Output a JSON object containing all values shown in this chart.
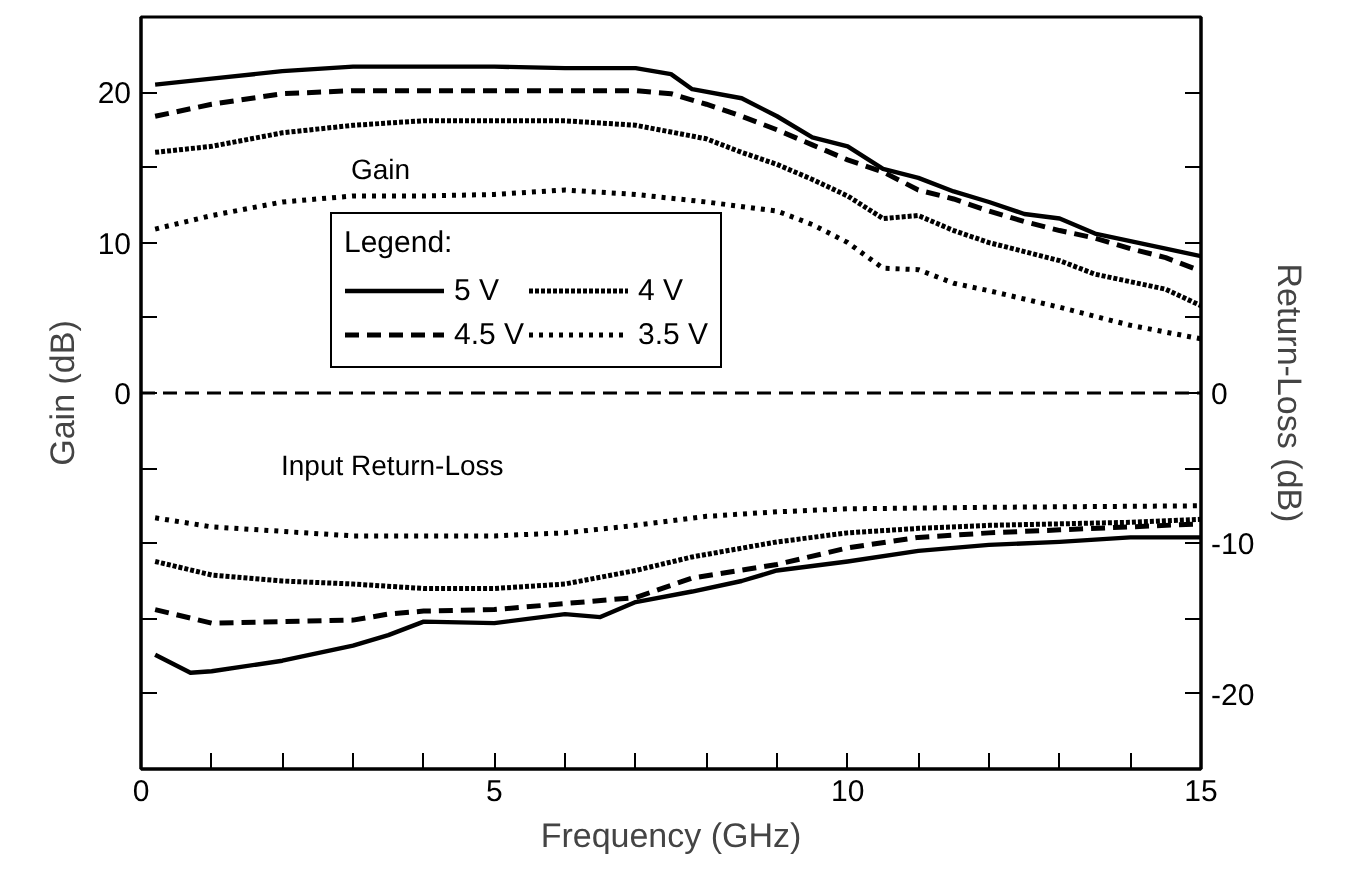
{
  "chart_data": {
    "type": "line",
    "xlabel": "Frequency (GHz)",
    "ylabel": "Gain (dB)",
    "y2label": "Return-Loss (dB)",
    "legend_title": "Legend:",
    "xlim": [
      0,
      15
    ],
    "ylim": [
      -25,
      25
    ],
    "y2lim": [
      -25,
      25
    ],
    "xticks": [
      0,
      {
        "value": 1,
        "label": null
      },
      {
        "value": 2,
        "label": null
      },
      {
        "value": 3,
        "label": null
      },
      {
        "value": 4,
        "label": null
      },
      5,
      {
        "value": 6,
        "label": null
      },
      {
        "value": 7,
        "label": null
      },
      {
        "value": 8,
        "label": null
      },
      {
        "value": 9,
        "label": null
      },
      10,
      {
        "value": 11,
        "label": null
      },
      {
        "value": 12,
        "label": null
      },
      {
        "value": 13,
        "label": null
      },
      {
        "value": 14,
        "label": null
      },
      15
    ],
    "yticks": [
      {
        "value": -20,
        "label": null
      },
      {
        "value": -15,
        "label": null
      },
      {
        "value": -10,
        "label": null
      },
      {
        "value": -5,
        "label": null
      },
      0,
      {
        "value": 5,
        "label": null
      },
      10,
      {
        "value": 15,
        "label": null
      },
      20
    ],
    "y2ticks": [
      -20,
      {
        "value": -15,
        "label": null
      },
      -10,
      {
        "value": -5,
        "label": null
      },
      0,
      {
        "value": 5,
        "label": null
      },
      {
        "value": 10,
        "label": null
      },
      {
        "value": 15,
        "label": null
      },
      {
        "value": 20,
        "label": null
      }
    ],
    "grid": false,
    "legend": "left",
    "marker": "none",
    "ref_lines": [
      {
        "axis": "y",
        "value": 0,
        "label": null,
        "color": "#000000",
        "line_style": "dashed"
      }
    ],
    "annotations": [
      "Gain",
      "Input Return-Loss"
    ],
    "series": [
      {
        "name": "5 V",
        "color": "#000000",
        "line_style": "solid",
        "x": [
          0.2,
          1,
          2,
          3,
          4,
          5,
          6,
          7,
          7.5,
          7.8,
          8.5,
          9,
          9.5,
          10,
          10.5,
          11,
          11.5,
          12,
          12.5,
          13,
          13.5,
          14,
          14.5,
          15
        ],
        "values": [
          20.5,
          20.9,
          21.4,
          21.7,
          21.7,
          21.7,
          21.6,
          21.6,
          21.2,
          20.2,
          19.6,
          18.4,
          17.0,
          16.4,
          14.9,
          14.3,
          13.4,
          12.7,
          11.9,
          11.6,
          10.6,
          10.1,
          9.6,
          9.1
        ]
      },
      {
        "name": "4.5 V",
        "color": "#000000",
        "line_style": "dashed",
        "x": [
          0.2,
          1,
          2,
          3,
          4,
          5,
          6,
          7,
          7.5,
          8,
          8.5,
          9,
          9.5,
          10,
          10.5,
          11,
          11.5,
          12,
          12.5,
          13,
          13.5,
          14,
          14.5,
          15
        ],
        "values": [
          18.4,
          19.2,
          19.9,
          20.1,
          20.1,
          20.1,
          20.1,
          20.1,
          19.9,
          19.2,
          18.4,
          17.5,
          16.5,
          15.5,
          14.7,
          13.5,
          12.9,
          12.1,
          11.4,
          10.8,
          10.3,
          9.6,
          9.0,
          8.1
        ]
      },
      {
        "name": "4 V",
        "color": "#000000",
        "line_style": "dashdot",
        "x": [
          0.2,
          1,
          2,
          3,
          4,
          5,
          6,
          7,
          8,
          8.5,
          9,
          9.5,
          10,
          10.5,
          11,
          11.5,
          12,
          12.5,
          13,
          13.5,
          14,
          14.5,
          15
        ],
        "values": [
          16.0,
          16.4,
          17.3,
          17.8,
          18.1,
          18.1,
          18.1,
          17.8,
          16.9,
          16.0,
          15.2,
          14.2,
          13.1,
          11.6,
          11.8,
          10.8,
          10.0,
          9.4,
          8.8,
          7.9,
          7.4,
          6.9,
          5.8
        ]
      },
      {
        "name": "3.5 V",
        "color": "#000000",
        "line_style": "dotted",
        "x": [
          0.2,
          1,
          2,
          3,
          4,
          5,
          6,
          7,
          8,
          9,
          9.5,
          10,
          10.5,
          11,
          11.5,
          12,
          13,
          14,
          15
        ],
        "values": [
          10.9,
          11.8,
          12.7,
          13.1,
          13.1,
          13.2,
          13.5,
          13.2,
          12.7,
          12.1,
          11.2,
          10.0,
          8.3,
          8.2,
          7.3,
          6.8,
          5.7,
          4.5,
          3.6
        ]
      },
      {
        "color": "#000000",
        "line_style": "solid",
        "x": [
          0.2,
          0.7,
          1,
          2,
          3,
          3.5,
          4,
          5,
          6,
          6.5,
          7,
          7.8,
          8.5,
          9,
          10,
          11,
          12,
          13,
          14,
          15
        ],
        "values": [
          -17.4,
          -18.6,
          -18.5,
          -17.8,
          -16.8,
          -16.1,
          -15.2,
          -15.3,
          -14.7,
          -14.9,
          -13.9,
          -13.2,
          -12.5,
          -11.8,
          -11.2,
          -10.5,
          -10.1,
          -9.9,
          -9.6,
          -9.6
        ]
      },
      {
        "color": "#000000",
        "line_style": "dashed",
        "x": [
          0.2,
          1,
          2,
          3,
          3.5,
          4,
          5,
          6,
          7,
          7.8,
          9,
          10,
          11,
          12,
          13,
          14,
          15
        ],
        "values": [
          -14.4,
          -15.3,
          -15.2,
          -15.1,
          -14.7,
          -14.5,
          -14.4,
          -14.0,
          -13.6,
          -12.3,
          -11.4,
          -10.3,
          -9.6,
          -9.3,
          -9.1,
          -8.9,
          -8.7
        ]
      },
      {
        "color": "#000000",
        "line_style": "dashdot",
        "x": [
          0.2,
          1,
          2,
          3,
          4,
          5,
          6,
          7,
          7.8,
          9,
          10,
          11,
          12,
          13,
          14,
          15
        ],
        "values": [
          -11.2,
          -12.1,
          -12.5,
          -12.7,
          -13.0,
          -13.0,
          -12.7,
          -11.8,
          -10.9,
          -9.9,
          -9.3,
          -9.0,
          -8.8,
          -8.7,
          -8.6,
          -8.4
        ]
      },
      {
        "color": "#000000",
        "line_style": "dotted",
        "x": [
          0.2,
          1,
          2,
          3,
          4,
          5,
          6,
          7,
          8,
          9,
          10,
          12,
          15
        ],
        "values": [
          -8.3,
          -8.9,
          -9.2,
          -9.5,
          -9.5,
          -9.5,
          -9.3,
          -8.8,
          -8.2,
          -7.9,
          -7.7,
          -7.6,
          -7.5
        ]
      }
    ]
  }
}
